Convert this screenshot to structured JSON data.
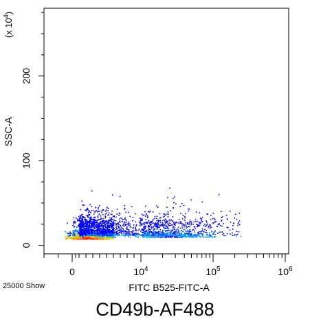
{
  "chart_data": {
    "type": "scatter",
    "xlabel": "FITC B525-FITC-A",
    "ylabel": "SSC-A",
    "y_multiplier": "(x 10",
    "y_multiplier_exp": "4",
    "y_multiplier_close": ")",
    "event_count_label": "25000 Show",
    "title": "CD49b-AF488",
    "x_scale": "biexponential",
    "xlim": [
      -1000,
      1000000
    ],
    "ylim": [
      -10,
      280
    ],
    "x_ticks": [
      {
        "value": 0,
        "base": "0",
        "exp": ""
      },
      {
        "value": 10000,
        "base": "10",
        "exp": "4"
      },
      {
        "value": 100000,
        "base": "10",
        "exp": "5"
      },
      {
        "value": 1000000,
        "base": "10",
        "exp": "6"
      }
    ],
    "y_ticks": [
      0,
      100,
      200
    ],
    "series": [
      {
        "x": 2.35,
        "y": 8,
        "sx": 0.45,
        "sy": 5,
        "n": 2200,
        "colors": [
          "#ff1a00",
          "#ff8c00",
          "#ffd700",
          "#40e0b0",
          "#00a0ff",
          "#0000ff"
        ]
      },
      {
        "x": 3.55,
        "y": 12,
        "sx": 0.75,
        "sy": 9,
        "n": 1400,
        "colors": [
          "#00a0ff",
          "#0000ff",
          "#0000ff"
        ]
      },
      {
        "x": 4.4,
        "y": 10,
        "sx": 0.3,
        "sy": 4,
        "n": 350,
        "colors": [
          "#0000ff",
          "#00a0ff"
        ]
      },
      {
        "x": 3.6,
        "y": 22,
        "sx": 1.1,
        "sy": 14,
        "n": 800,
        "colors": [
          "#0000ff"
        ]
      }
    ]
  }
}
